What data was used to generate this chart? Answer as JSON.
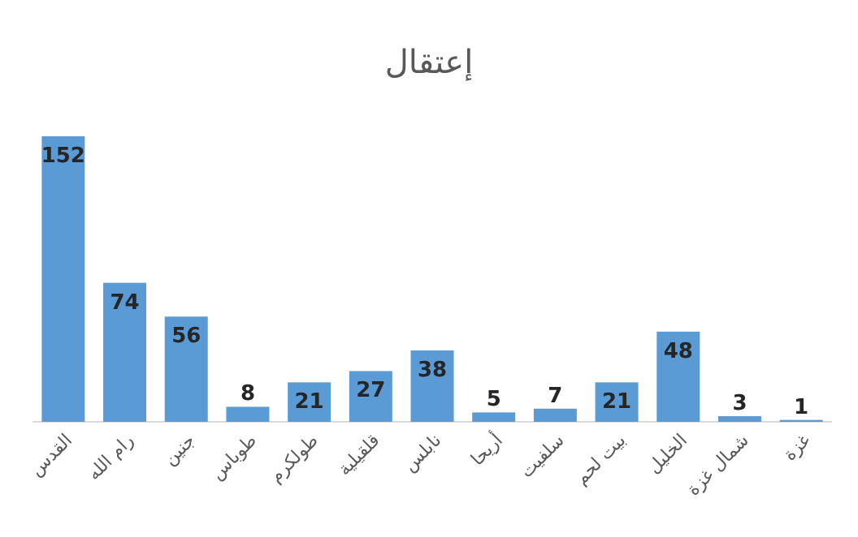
{
  "chart_data": {
    "type": "bar",
    "title": "إعتقال",
    "categories": [
      "القدس",
      "رام الله",
      "جنين",
      "طوباس",
      "طولكرم",
      "قلقيلية",
      "نابلس",
      "أريحا",
      "سلفيت",
      "بيت لحم",
      "الخليل",
      "شمال غزة",
      "غزة"
    ],
    "values": [
      152,
      74,
      56,
      8,
      21,
      27,
      38,
      5,
      7,
      21,
      48,
      3,
      1
    ],
    "color": "#5b9bd5",
    "data_labels": true
  }
}
